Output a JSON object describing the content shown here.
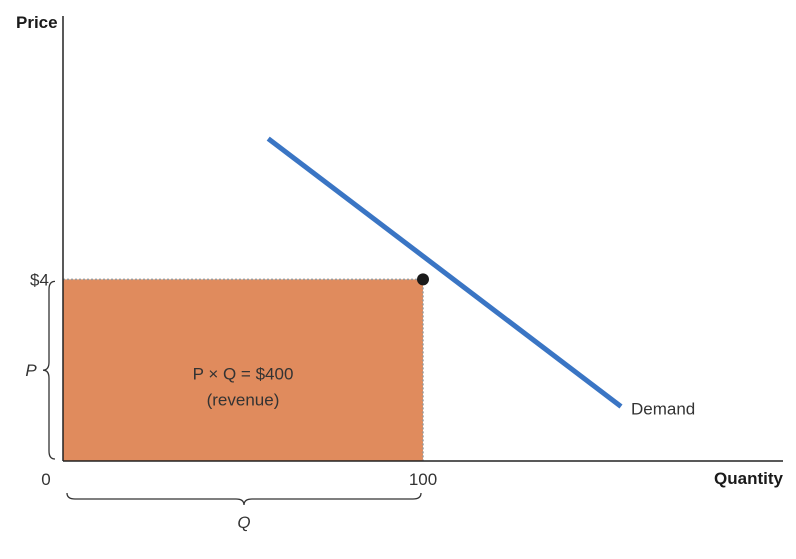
{
  "chart_data": {
    "type": "line",
    "xlabel": "Quantity",
    "ylabel": "Price",
    "x_origin_label": "0",
    "xlim": [
      0,
      200
    ],
    "ylim": [
      0,
      9.8
    ],
    "x_ticks": [
      {
        "value": 100,
        "label": "100"
      }
    ],
    "y_ticks": [
      {
        "value": 4,
        "label": "$4"
      }
    ],
    "series": [
      {
        "name": "Demand",
        "points": [
          {
            "x": 57,
            "y": 7.1
          },
          {
            "x": 155,
            "y": 1.2
          }
        ]
      }
    ],
    "highlight_point": {
      "x": 100,
      "y": 4
    },
    "revenue_rectangle": {
      "x": [
        0,
        100
      ],
      "y": [
        0,
        4
      ],
      "color": "#e08b5d",
      "label_line1": "P × Q = $400",
      "label_line2": "(revenue)"
    },
    "brace_labels": {
      "price": "P",
      "quantity": "Q"
    },
    "colors": {
      "demand": "#3a75c4",
      "axis": "#222222",
      "rectangle": "#e08b5d",
      "rectangle_border": "#9a9a9a",
      "point": "#1a1a1a"
    }
  }
}
